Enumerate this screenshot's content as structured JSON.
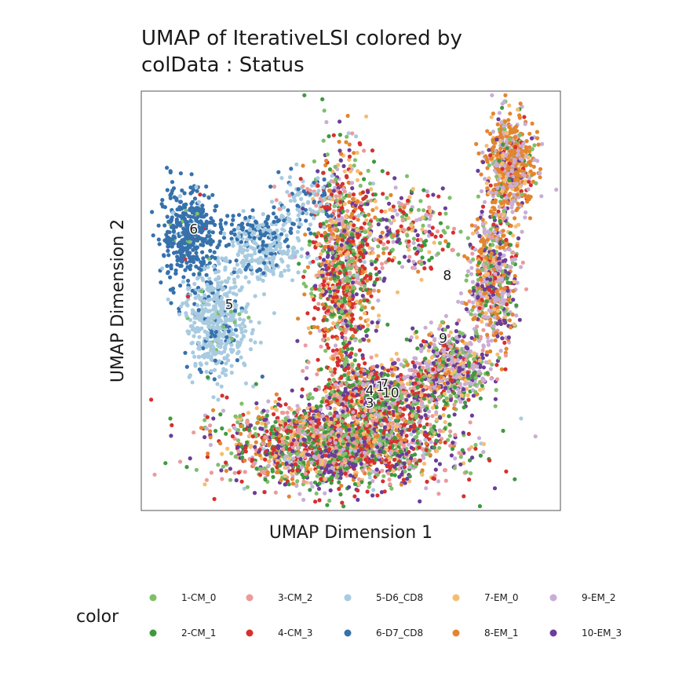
{
  "chart_data": {
    "type": "scatter",
    "title_line1": "UMAP of IterativeLSI  colored by",
    "title_line2": "colData :  Status",
    "xlabel": "UMAP Dimension 1",
    "ylabel": "UMAP Dimension 2",
    "xlim": [
      0,
      100
    ],
    "ylim": [
      0,
      100
    ],
    "legend": {
      "title": "color",
      "position": "bottom",
      "entries": [
        {
          "id": "1",
          "label": "1-CM_0",
          "color": "#7fbf6b"
        },
        {
          "id": "2",
          "label": "2-CM_1",
          "color": "#3f9a3f"
        },
        {
          "id": "3",
          "label": "3-CM_2",
          "color": "#ec9a9c"
        },
        {
          "id": "4",
          "label": "4-CM_3",
          "color": "#d6302e"
        },
        {
          "id": "5",
          "label": "5-D6_CD8",
          "color": "#a8cbe0"
        },
        {
          "id": "6",
          "label": "6-D7_CD8",
          "color": "#3671ac"
        },
        {
          "id": "7",
          "label": "7-EM_0",
          "color": "#f5bd72"
        },
        {
          "id": "8",
          "label": "8-EM_1",
          "color": "#e3852f"
        },
        {
          "id": "9",
          "label": "9-EM_2",
          "color": "#c9aed6"
        },
        {
          "id": "10",
          "label": "10-EM_3",
          "color": "#6a3d9a"
        }
      ]
    },
    "cluster_labels": [
      {
        "text": "6",
        "x": 12.5,
        "y": 66
      },
      {
        "text": "5",
        "x": 21,
        "y": 48
      },
      {
        "text": "8",
        "x": 73,
        "y": 55
      },
      {
        "text": "9",
        "x": 72,
        "y": 40
      },
      {
        "text": "7",
        "x": 58,
        "y": 29
      },
      {
        "text": "4",
        "x": 54.5,
        "y": 27.5
      },
      {
        "text": "10",
        "x": 59.5,
        "y": 27
      },
      {
        "text": "3",
        "x": 54.5,
        "y": 24.5
      },
      {
        "text": "1",
        "x": 57,
        "y": 28.5
      }
    ],
    "regions": [
      {
        "name": "cluster-6-blob",
        "cx": 11,
        "cy": 66,
        "rx": 6,
        "ry": 10,
        "n": 420,
        "mix": {
          "6": 0.93,
          "5": 0.03,
          "4": 0.02,
          "1": 0.02
        }
      },
      {
        "name": "cluster-6-arm",
        "cx": 26,
        "cy": 67,
        "rx": 10,
        "ry": 4,
        "n": 140,
        "mix": {
          "6": 0.7,
          "5": 0.3
        }
      },
      {
        "name": "cluster-5-body",
        "cx": 18,
        "cy": 45,
        "rx": 7,
        "ry": 11,
        "n": 520,
        "mix": {
          "5": 0.85,
          "6": 0.12,
          "1": 0.03
        }
      },
      {
        "name": "cluster-5-upper",
        "cx": 29,
        "cy": 61,
        "rx": 8,
        "ry": 6,
        "n": 220,
        "mix": {
          "5": 0.8,
          "6": 0.2
        }
      },
      {
        "name": "cluster-5-ridge",
        "cx": 39,
        "cy": 74,
        "rx": 9,
        "ry": 6,
        "n": 120,
        "mix": {
          "5": 0.55,
          "6": 0.3,
          "3": 0.15
        }
      },
      {
        "name": "upper-middle-column",
        "cx": 48,
        "cy": 58,
        "rx": 7,
        "ry": 24,
        "n": 1100,
        "mix": {
          "1": 0.12,
          "2": 0.12,
          "3": 0.1,
          "4": 0.22,
          "5": 0.02,
          "7": 0.12,
          "8": 0.14,
          "9": 0.06,
          "10": 0.1
        }
      },
      {
        "name": "upper-middle-scatter",
        "cx": 63,
        "cy": 66,
        "rx": 10,
        "ry": 11,
        "n": 240,
        "mix": {
          "1": 0.14,
          "2": 0.12,
          "3": 0.1,
          "4": 0.16,
          "7": 0.12,
          "8": 0.1,
          "9": 0.12,
          "10": 0.14
        }
      },
      {
        "name": "right-arm-top",
        "cx": 88,
        "cy": 82,
        "rx": 5,
        "ry": 11,
        "n": 650,
        "mix": {
          "8": 0.45,
          "9": 0.25,
          "7": 0.1,
          "1": 0.06,
          "2": 0.05,
          "4": 0.04,
          "10": 0.05
        }
      },
      {
        "name": "right-arm-middle",
        "cx": 84,
        "cy": 55,
        "rx": 5,
        "ry": 15,
        "n": 650,
        "mix": {
          "9": 0.3,
          "8": 0.2,
          "10": 0.15,
          "7": 0.1,
          "1": 0.08,
          "2": 0.07,
          "4": 0.05,
          "3": 0.05
        }
      },
      {
        "name": "right-arm-bottom",
        "cx": 74,
        "cy": 34,
        "rx": 8,
        "ry": 8,
        "n": 600,
        "mix": {
          "9": 0.25,
          "10": 0.2,
          "7": 0.15,
          "1": 0.12,
          "2": 0.1,
          "8": 0.08,
          "4": 0.05,
          "3": 0.05
        }
      },
      {
        "name": "bottom-body",
        "cx": 47,
        "cy": 16,
        "rx": 24,
        "ry": 9,
        "n": 2200,
        "mix": {
          "1": 0.12,
          "2": 0.14,
          "3": 0.12,
          "4": 0.16,
          "7": 0.1,
          "8": 0.08,
          "9": 0.1,
          "10": 0.16,
          "5": 0.02
        }
      },
      {
        "name": "bottom-body-upper",
        "cx": 57,
        "cy": 28,
        "rx": 13,
        "ry": 6,
        "n": 700,
        "mix": {
          "1": 0.12,
          "2": 0.16,
          "3": 0.1,
          "4": 0.14,
          "7": 0.12,
          "8": 0.08,
          "9": 0.12,
          "10": 0.16
        }
      }
    ]
  }
}
